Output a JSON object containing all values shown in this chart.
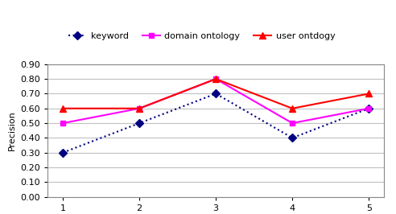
{
  "x": [
    1,
    2,
    3,
    4,
    5
  ],
  "series": [
    {
      "label": "keyword",
      "values": [
        0.3,
        0.5,
        0.7,
        0.4,
        0.6
      ],
      "color": "#000080",
      "marker": "D",
      "markersize": 5,
      "linestyle": ":"
    },
    {
      "label": "domain ontology",
      "values": [
        0.5,
        0.6,
        0.8,
        0.5,
        0.6
      ],
      "color": "#FF00FF",
      "marker": "s",
      "markersize": 5,
      "linestyle": "-"
    },
    {
      "label": "user ontdogy",
      "values": [
        0.6,
        0.6,
        0.8,
        0.6,
        0.7
      ],
      "color": "#FF0000",
      "marker": "^",
      "markersize": 6,
      "linestyle": "-"
    }
  ],
  "ylabel": "Precision",
  "ylim": [
    0.0,
    0.9
  ],
  "yticks": [
    0.0,
    0.1,
    0.2,
    0.3,
    0.4,
    0.5,
    0.6,
    0.7,
    0.8,
    0.9
  ],
  "xticks": [
    1,
    2,
    3,
    4,
    5
  ],
  "background_color": "#ffffff",
  "plot_bg_color": "#ffffff",
  "grid_color": "#c0c0c0"
}
